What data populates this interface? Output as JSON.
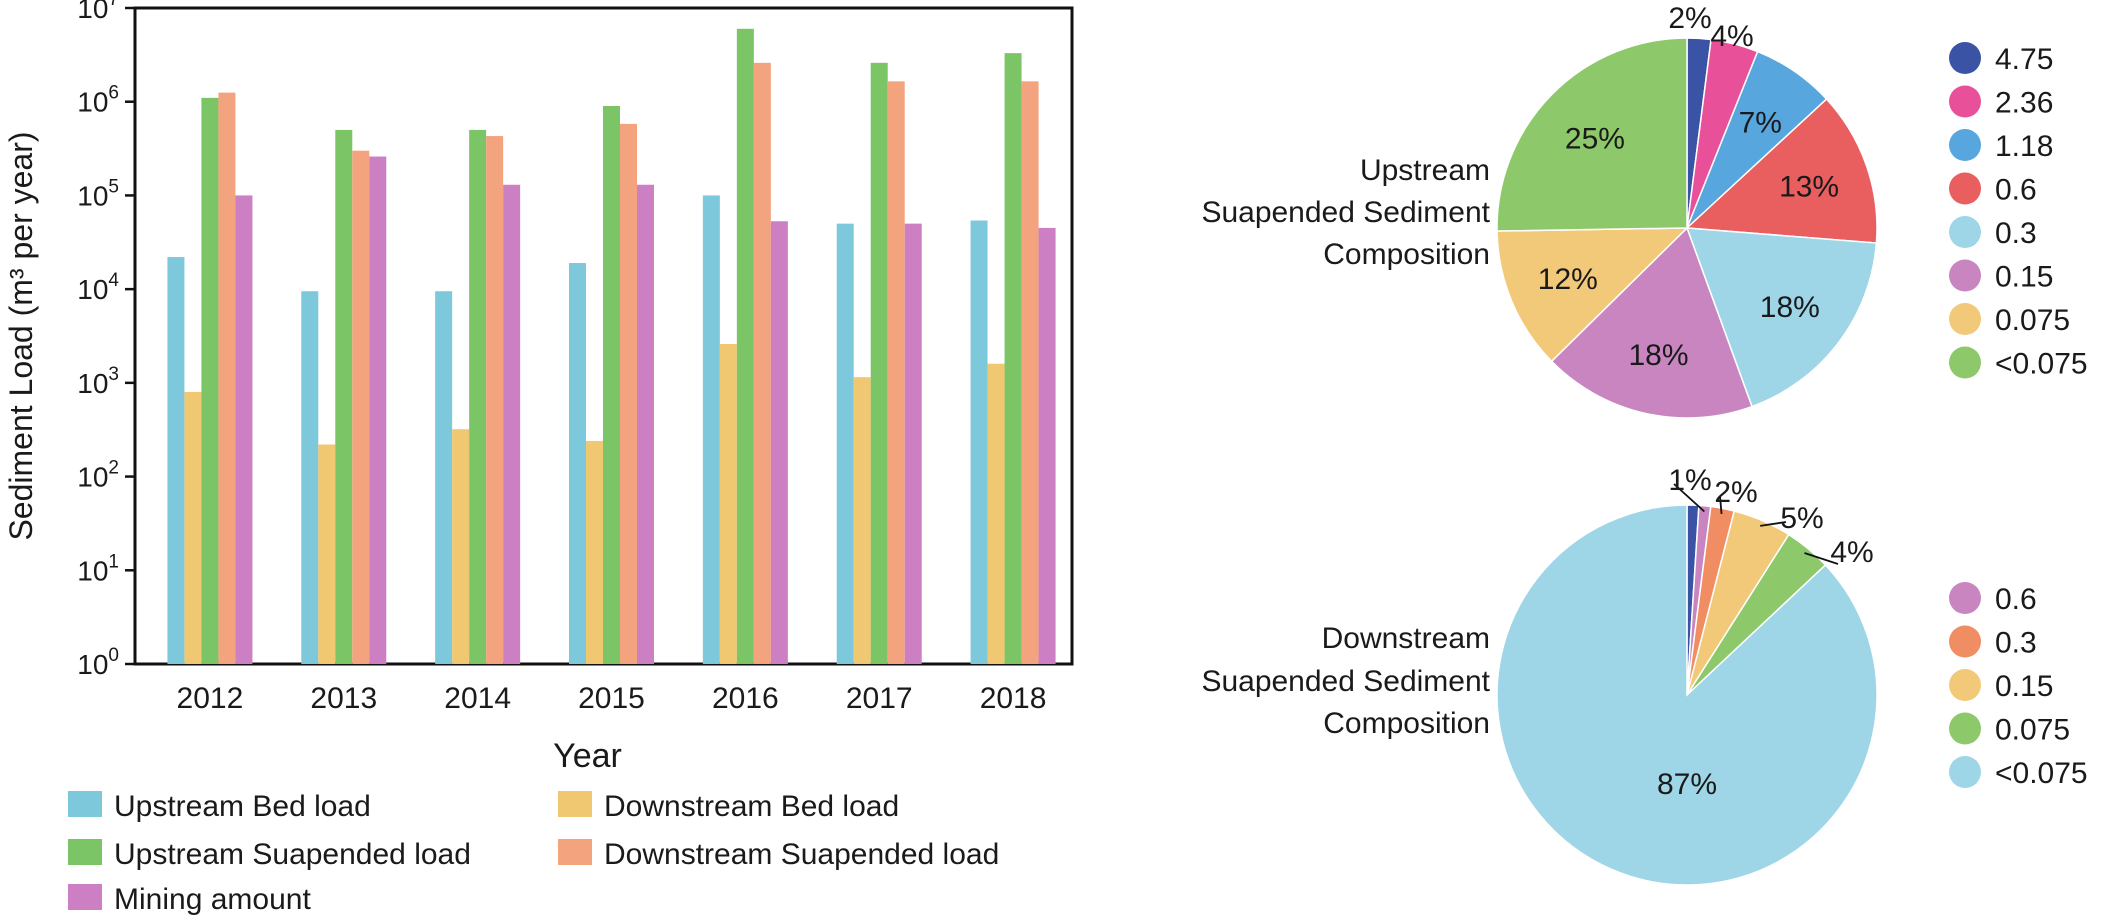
{
  "chart_data": [
    {
      "type": "bar",
      "xlabel": "Year",
      "ylabel": "Sediment Load (m³ per year)",
      "yscale": "log",
      "ylim": [
        1,
        10000000
      ],
      "yticks": [
        {
          "base": "10",
          "exp": "0"
        },
        {
          "base": "10",
          "exp": "1"
        },
        {
          "base": "10",
          "exp": "2"
        },
        {
          "base": "10",
          "exp": "3"
        },
        {
          "base": "10",
          "exp": "4"
        },
        {
          "base": "10",
          "exp": "5"
        },
        {
          "base": "10",
          "exp": "6"
        },
        {
          "base": "10",
          "exp": "7"
        }
      ],
      "grid": false,
      "legend_position": "bottom",
      "categories": [
        "2012",
        "2013",
        "2014",
        "2015",
        "2016",
        "2017",
        "2018"
      ],
      "series": [
        {
          "name": "Upstream Bed load",
          "color": "#7ec8dc",
          "values": [
            22000,
            9500,
            9500,
            19000,
            100000,
            50000,
            54000
          ]
        },
        {
          "name": "Downstream Bed load",
          "color": "#f1c872",
          "values": [
            800,
            220,
            320,
            240,
            2600,
            1150,
            1600
          ]
        },
        {
          "name": "Upstream Suapended load",
          "color": "#7cc567",
          "values": [
            1100000,
            500000,
            500000,
            900000,
            6000000,
            2600000,
            3300000
          ]
        },
        {
          "name": "Downstream Suapended load",
          "color": "#f3a37e",
          "values": [
            1250000,
            300000,
            430000,
            580000,
            2600000,
            1650000,
            1650000
          ]
        },
        {
          "name": "Mining amount",
          "color": "#cc7fc2",
          "values": [
            100000,
            260000,
            130000,
            130000,
            53000,
            50000,
            45000
          ]
        }
      ],
      "legend_order": [
        "Upstream Bed load",
        "Downstream Bed load",
        "Upstream Suapended load",
        "Downstream Suapended load",
        "Mining amount"
      ]
    },
    {
      "type": "pie",
      "title": [
        "Upstream",
        "Suapended Sediment",
        "Composition"
      ],
      "slices": [
        {
          "label": "4.75",
          "value": 2,
          "text": "2%",
          "color": "#3a53a4"
        },
        {
          "label": "2.36",
          "value": 4,
          "text": "4%",
          "color": "#e9509a"
        },
        {
          "label": "1.18",
          "value": 7,
          "text": "7%",
          "color": "#58a6de"
        },
        {
          "label": "0.6",
          "value": 13,
          "text": "13%",
          "color": "#e95e5e"
        },
        {
          "label": "0.3",
          "value": 18,
          "text": "18%",
          "color": "#9ed6e8"
        },
        {
          "label": "0.15",
          "value": 18,
          "text": "18%",
          "color": "#c985bf"
        },
        {
          "label": "0.075",
          "value": 12,
          "text": "12%",
          "color": "#f2c978"
        },
        {
          "label": "<0.075",
          "value": 25,
          "text": "25%",
          "color": "#8dc96b"
        }
      ]
    },
    {
      "type": "pie",
      "title": [
        "Downstream",
        "Suapended Sediment",
        "Composition"
      ],
      "slices": [
        {
          "label": "",
          "value": 1,
          "text": "",
          "color": "#3a53a4"
        },
        {
          "label": "0.6",
          "value": 1,
          "text": "1%",
          "color": "#c985bf"
        },
        {
          "label": "0.3",
          "value": 2,
          "text": "2%",
          "color": "#f08d63"
        },
        {
          "label": "0.15",
          "value": 5,
          "text": "5%",
          "color": "#f2c978"
        },
        {
          "label": "0.075",
          "value": 4,
          "text": "4%",
          "color": "#8dc96b"
        },
        {
          "label": "<0.075",
          "value": 87,
          "text": "87%",
          "color": "#9ed6e8"
        }
      ]
    }
  ]
}
